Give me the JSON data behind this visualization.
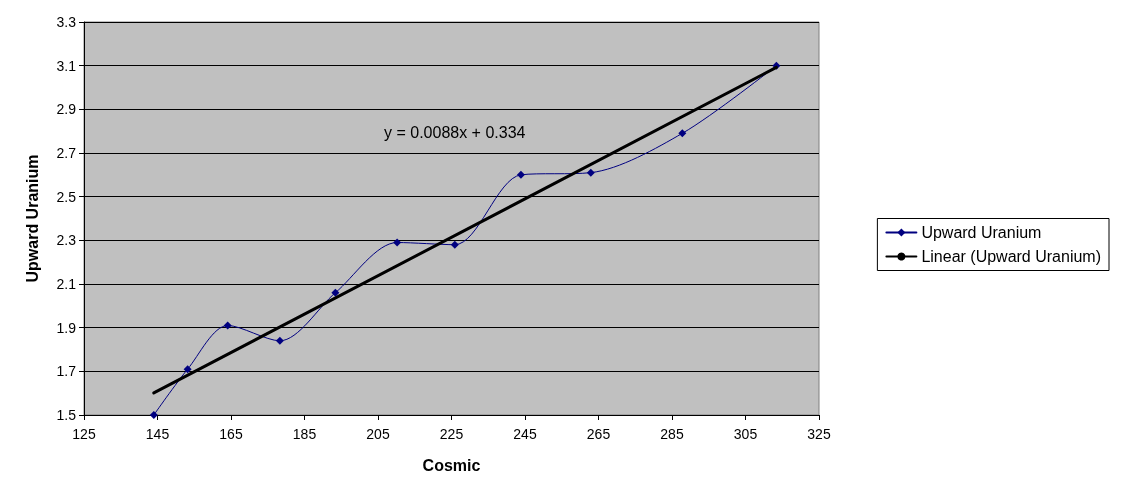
{
  "chart_data": {
    "type": "line",
    "xlabel": "Cosmic",
    "ylabel": "Upward Uranium",
    "x": [
      144,
      153.2,
      164.1,
      178.3,
      193.4,
      210.2,
      225.9,
      243.9,
      262.9,
      287.8,
      313.4
    ],
    "series": [
      {
        "name": "Upward Uranium",
        "color": "#000080",
        "values": [
          1.5,
          1.71,
          1.91,
          1.84,
          2.06,
          2.29,
          2.28,
          2.6,
          2.61,
          2.79,
          3.1
        ]
      },
      {
        "name": "Linear (Upward Uranium)",
        "type": "line",
        "color": "#000000",
        "marker": "none",
        "x": [
          144,
          313.4
        ],
        "values": [
          1.601,
          3.092
        ]
      }
    ],
    "annotations": [
      "y = 0.0088x + 0.334"
    ],
    "xlim": [
      125,
      325
    ],
    "xticks": [
      125,
      145,
      165,
      185,
      205,
      225,
      245,
      265,
      285,
      305,
      325
    ],
    "ylim": [
      1.5,
      3.3
    ],
    "yticks": [
      1.5,
      1.7,
      1.9,
      2.1,
      2.3,
      2.5,
      2.7,
      2.9,
      3.1,
      3.3
    ],
    "grid": "y",
    "legend": "right",
    "marker": "diamond",
    "line_style": "solid"
  }
}
